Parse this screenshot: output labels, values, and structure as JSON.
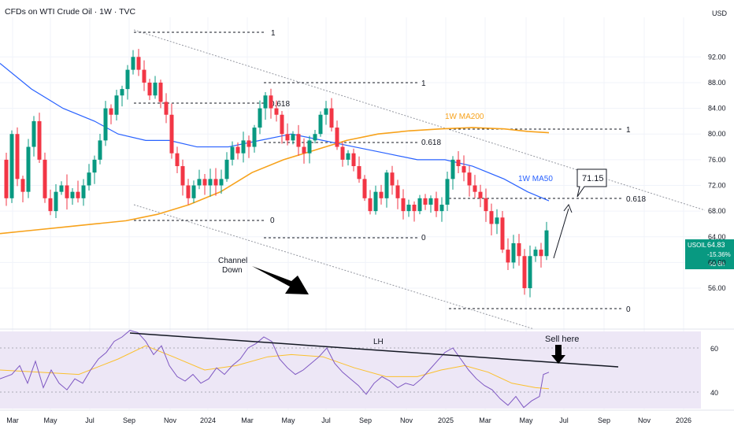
{
  "header": {
    "symbol": "CFDs on WTI Crude Oil · 1W · TVC",
    "currency": "USD"
  },
  "price_badge": {
    "ticker": "USOIL",
    "price": "64.83",
    "change": "-15.36%",
    "countdown": "4d 6h",
    "color": "#089981"
  },
  "annotations": {
    "channel": [
      "Channel",
      "Down"
    ],
    "ma200": "1W MA200",
    "ma50": "1W MA50",
    "target": "71.15",
    "lh": "LH",
    "sell": "Sell here",
    "fib": [
      {
        "key": "f1a",
        "label": "1"
      },
      {
        "key": "f1b",
        "label": "0.618"
      },
      {
        "key": "f1c",
        "label": "0"
      },
      {
        "key": "f2a",
        "label": "1"
      },
      {
        "key": "f2b",
        "label": "0.618"
      },
      {
        "key": "f2c",
        "label": "0"
      },
      {
        "key": "f3a",
        "label": "1"
      },
      {
        "key": "f3b",
        "label": "0.618"
      },
      {
        "key": "f3c",
        "label": "0"
      }
    ]
  },
  "colors": {
    "up": "#089981",
    "down": "#f23645",
    "ma50": "#2962ff",
    "ma200": "#f7a21b",
    "rsi": "#7e57c2",
    "rsi_ma": "#fbc02d",
    "rsi_band": "#ede7f6"
  },
  "chart_data": {
    "type": "candlestick",
    "x_ticks": [
      "Mar",
      "May",
      "Jul",
      "Sep",
      "Nov",
      "2024",
      "Mar",
      "May",
      "Jul",
      "Sep",
      "Nov",
      "2025",
      "Mar",
      "May",
      "Jul",
      "Sep",
      "Nov",
      "2026"
    ],
    "y_ticks": [
      56,
      60,
      64,
      68,
      72,
      76,
      80,
      84,
      88,
      92
    ],
    "rsi_ticks": [
      40,
      60
    ],
    "close_path": [
      [
        0,
        76
      ],
      [
        8,
        70
      ],
      [
        15,
        80
      ],
      [
        22,
        73
      ],
      [
        29,
        71
      ],
      [
        36,
        78
      ],
      [
        43,
        82
      ],
      [
        50,
        76
      ],
      [
        57,
        70
      ],
      [
        64,
        68
      ],
      [
        71,
        71
      ],
      [
        78,
        72
      ],
      [
        85,
        70
      ],
      [
        92,
        71
      ],
      [
        99,
        70
      ],
      [
        106,
        72
      ],
      [
        113,
        74
      ],
      [
        120,
        76
      ],
      [
        127,
        79
      ],
      [
        134,
        84
      ],
      [
        141,
        83
      ],
      [
        148,
        86
      ],
      [
        155,
        87
      ],
      [
        162,
        90
      ],
      [
        169,
        92
      ],
      [
        176,
        90
      ],
      [
        183,
        88
      ],
      [
        190,
        86
      ],
      [
        197,
        88
      ],
      [
        204,
        85
      ],
      [
        211,
        83
      ],
      [
        218,
        77
      ],
      [
        225,
        75
      ],
      [
        232,
        72
      ],
      [
        239,
        70
      ],
      [
        246,
        72
      ],
      [
        253,
        73
      ],
      [
        260,
        72
      ],
      [
        267,
        73
      ],
      [
        274,
        72
      ],
      [
        281,
        73
      ],
      [
        288,
        76
      ],
      [
        295,
        78
      ],
      [
        302,
        77
      ],
      [
        309,
        79
      ],
      [
        316,
        78
      ],
      [
        323,
        81
      ],
      [
        330,
        84
      ],
      [
        337,
        86
      ],
      [
        344,
        84
      ],
      [
        351,
        83
      ],
      [
        358,
        80
      ],
      [
        365,
        79
      ],
      [
        372,
        80
      ],
      [
        379,
        78
      ],
      [
        386,
        77
      ],
      [
        393,
        79
      ],
      [
        400,
        80
      ],
      [
        407,
        83
      ],
      [
        414,
        84
      ],
      [
        421,
        81
      ],
      [
        428,
        78
      ],
      [
        435,
        76
      ],
      [
        442,
        77
      ],
      [
        449,
        75
      ],
      [
        456,
        73
      ],
      [
        463,
        70
      ],
      [
        470,
        68
      ],
      [
        477,
        71
      ],
      [
        484,
        70
      ],
      [
        491,
        74
      ],
      [
        498,
        72
      ],
      [
        505,
        70
      ],
      [
        512,
        68
      ],
      [
        519,
        69
      ],
      [
        526,
        68
      ],
      [
        533,
        70
      ],
      [
        540,
        69
      ],
      [
        547,
        70
      ],
      [
        554,
        68
      ],
      [
        561,
        69
      ],
      [
        568,
        73
      ],
      [
        575,
        76
      ],
      [
        582,
        75
      ],
      [
        589,
        74
      ],
      [
        596,
        72
      ],
      [
        603,
        71
      ],
      [
        610,
        70
      ],
      [
        617,
        68
      ],
      [
        624,
        66
      ],
      [
        631,
        67
      ],
      [
        638,
        62
      ],
      [
        645,
        60
      ],
      [
        652,
        63
      ],
      [
        659,
        61
      ],
      [
        666,
        56
      ],
      [
        673,
        61
      ],
      [
        680,
        62
      ],
      [
        687,
        61
      ],
      [
        694,
        65
      ]
    ],
    "ma50": [
      [
        0,
        91
      ],
      [
        40,
        87
      ],
      [
        80,
        84
      ],
      [
        120,
        82
      ],
      [
        150,
        80
      ],
      [
        185,
        79
      ],
      [
        215,
        79
      ],
      [
        250,
        78
      ],
      [
        290,
        78
      ],
      [
        330,
        79
      ],
      [
        370,
        80
      ],
      [
        410,
        79
      ],
      [
        450,
        78
      ],
      [
        490,
        77
      ],
      [
        530,
        76
      ],
      [
        565,
        76
      ],
      [
        600,
        75
      ],
      [
        640,
        73
      ],
      [
        670,
        71
      ],
      [
        697,
        69.6
      ]
    ],
    "ma200": [
      [
        0,
        64.5
      ],
      [
        40,
        65
      ],
      [
        80,
        65.5
      ],
      [
        120,
        66
      ],
      [
        160,
        66.5
      ],
      [
        200,
        67.5
      ],
      [
        240,
        69
      ],
      [
        280,
        71
      ],
      [
        320,
        74
      ],
      [
        360,
        76
      ],
      [
        400,
        77.5
      ],
      [
        440,
        79
      ],
      [
        480,
        80
      ],
      [
        520,
        80.5
      ],
      [
        560,
        80.8
      ],
      [
        600,
        81
      ],
      [
        640,
        80.8
      ],
      [
        670,
        80.4
      ],
      [
        697,
        80.2
      ]
    ],
    "rsi": [
      [
        0,
        46
      ],
      [
        15,
        48
      ],
      [
        25,
        52
      ],
      [
        35,
        44
      ],
      [
        45,
        54
      ],
      [
        55,
        42
      ],
      [
        65,
        50
      ],
      [
        75,
        44
      ],
      [
        85,
        41
      ],
      [
        95,
        46
      ],
      [
        105,
        44
      ],
      [
        115,
        50
      ],
      [
        125,
        55
      ],
      [
        135,
        58
      ],
      [
        145,
        63
      ],
      [
        155,
        65
      ],
      [
        165,
        68
      ],
      [
        175,
        67
      ],
      [
        185,
        63
      ],
      [
        195,
        57
      ],
      [
        205,
        61
      ],
      [
        215,
        52
      ],
      [
        225,
        47
      ],
      [
        235,
        45
      ],
      [
        245,
        48
      ],
      [
        255,
        44
      ],
      [
        265,
        46
      ],
      [
        275,
        51
      ],
      [
        285,
        48
      ],
      [
        295,
        52
      ],
      [
        305,
        55
      ],
      [
        315,
        60
      ],
      [
        325,
        62
      ],
      [
        335,
        65
      ],
      [
        345,
        63
      ],
      [
        355,
        55
      ],
      [
        365,
        51
      ],
      [
        375,
        48
      ],
      [
        385,
        50
      ],
      [
        395,
        53
      ],
      [
        405,
        56
      ],
      [
        415,
        60
      ],
      [
        425,
        53
      ],
      [
        435,
        49
      ],
      [
        445,
        46
      ],
      [
        455,
        43
      ],
      [
        465,
        39
      ],
      [
        475,
        44
      ],
      [
        485,
        47
      ],
      [
        495,
        45
      ],
      [
        505,
        42
      ],
      [
        515,
        44
      ],
      [
        525,
        43
      ],
      [
        535,
        46
      ],
      [
        545,
        50
      ],
      [
        555,
        54
      ],
      [
        565,
        58
      ],
      [
        575,
        60
      ],
      [
        585,
        55
      ],
      [
        595,
        50
      ],
      [
        605,
        46
      ],
      [
        615,
        43
      ],
      [
        625,
        41
      ],
      [
        635,
        37
      ],
      [
        645,
        34
      ],
      [
        655,
        38
      ],
      [
        665,
        33
      ],
      [
        675,
        36
      ],
      [
        685,
        38
      ],
      [
        690,
        48
      ],
      [
        697,
        49
      ]
    ],
    "rsi_ma": [
      [
        0,
        50
      ],
      [
        50,
        49
      ],
      [
        100,
        48
      ],
      [
        150,
        55
      ],
      [
        185,
        61
      ],
      [
        220,
        56
      ],
      [
        260,
        50
      ],
      [
        300,
        52
      ],
      [
        340,
        56
      ],
      [
        370,
        57
      ],
      [
        410,
        56
      ],
      [
        450,
        51
      ],
      [
        490,
        47
      ],
      [
        530,
        47
      ],
      [
        560,
        50
      ],
      [
        590,
        52
      ],
      [
        620,
        49
      ],
      [
        650,
        44
      ],
      [
        680,
        42
      ],
      [
        697,
        41.5
      ]
    ]
  }
}
